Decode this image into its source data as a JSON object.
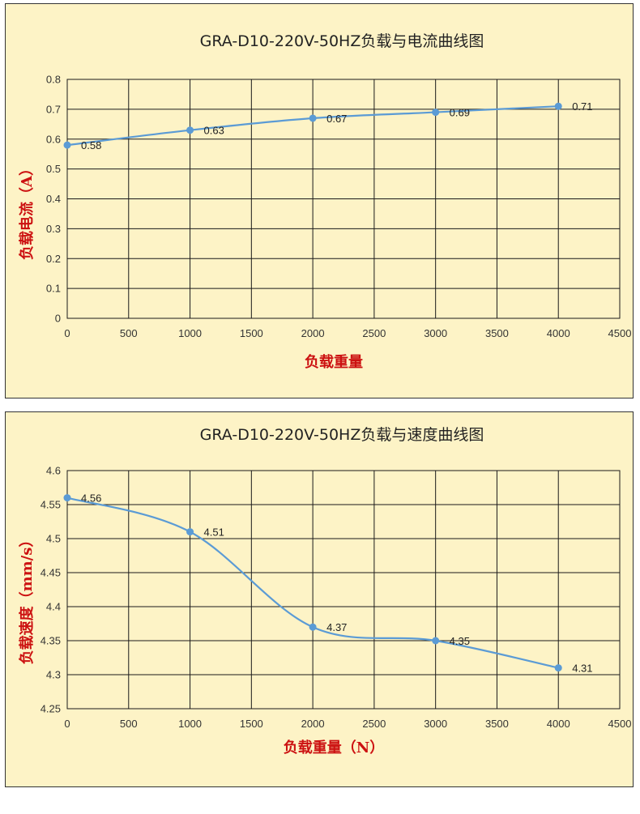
{
  "chart_data": [
    {
      "type": "line",
      "title": "GRA-D10-220V-50HZ负载与电流曲线图",
      "xlabel": "负载重量",
      "ylabel": "负载电流（A）",
      "xlim": [
        0,
        4500
      ],
      "ylim": [
        0,
        0.8
      ],
      "x_ticks": [
        "0",
        "500",
        "1000",
        "1500",
        "2000",
        "2500",
        "3000",
        "3500",
        "4000",
        "4500"
      ],
      "y_ticks": [
        "0",
        "0.1",
        "0.2",
        "0.3",
        "0.4",
        "0.5",
        "0.6",
        "0.7",
        "0.8"
      ],
      "grid": true,
      "smooth": true,
      "series": [
        {
          "x": [
            0,
            1000,
            2000,
            3000,
            4000
          ],
          "values": [
            0.58,
            0.63,
            0.67,
            0.69,
            0.71
          ],
          "labels": [
            "0.58",
            "0.63",
            "0.67",
            "0.69",
            "0.71"
          ]
        }
      ],
      "colors": {
        "line": "#5b9bd5",
        "axis_title": "#cc1111",
        "background": "#fdf3c6"
      }
    },
    {
      "type": "line",
      "title": "GRA-D10-220V-50HZ负载与速度曲线图",
      "xlabel": "负载重量（N）",
      "ylabel": "负载速度（mm/s）",
      "xlim": [
        0,
        4500
      ],
      "ylim": [
        4.25,
        4.6
      ],
      "x_ticks": [
        "0",
        "500",
        "1000",
        "1500",
        "2000",
        "2500",
        "3000",
        "3500",
        "4000",
        "4500"
      ],
      "y_ticks": [
        "4.25",
        "4.3",
        "4.35",
        "4.4",
        "4.45",
        "4.5",
        "4.55",
        "4.6"
      ],
      "grid": true,
      "smooth": true,
      "series": [
        {
          "x": [
            0,
            1000,
            2000,
            3000,
            4000
          ],
          "values": [
            4.56,
            4.51,
            4.37,
            4.35,
            4.31
          ],
          "labels": [
            "4.56",
            "4.51",
            "4.37",
            "4.35",
            "4.31"
          ]
        }
      ],
      "colors": {
        "line": "#5b9bd5",
        "axis_title": "#cc1111",
        "background": "#fdf3c6"
      }
    }
  ]
}
